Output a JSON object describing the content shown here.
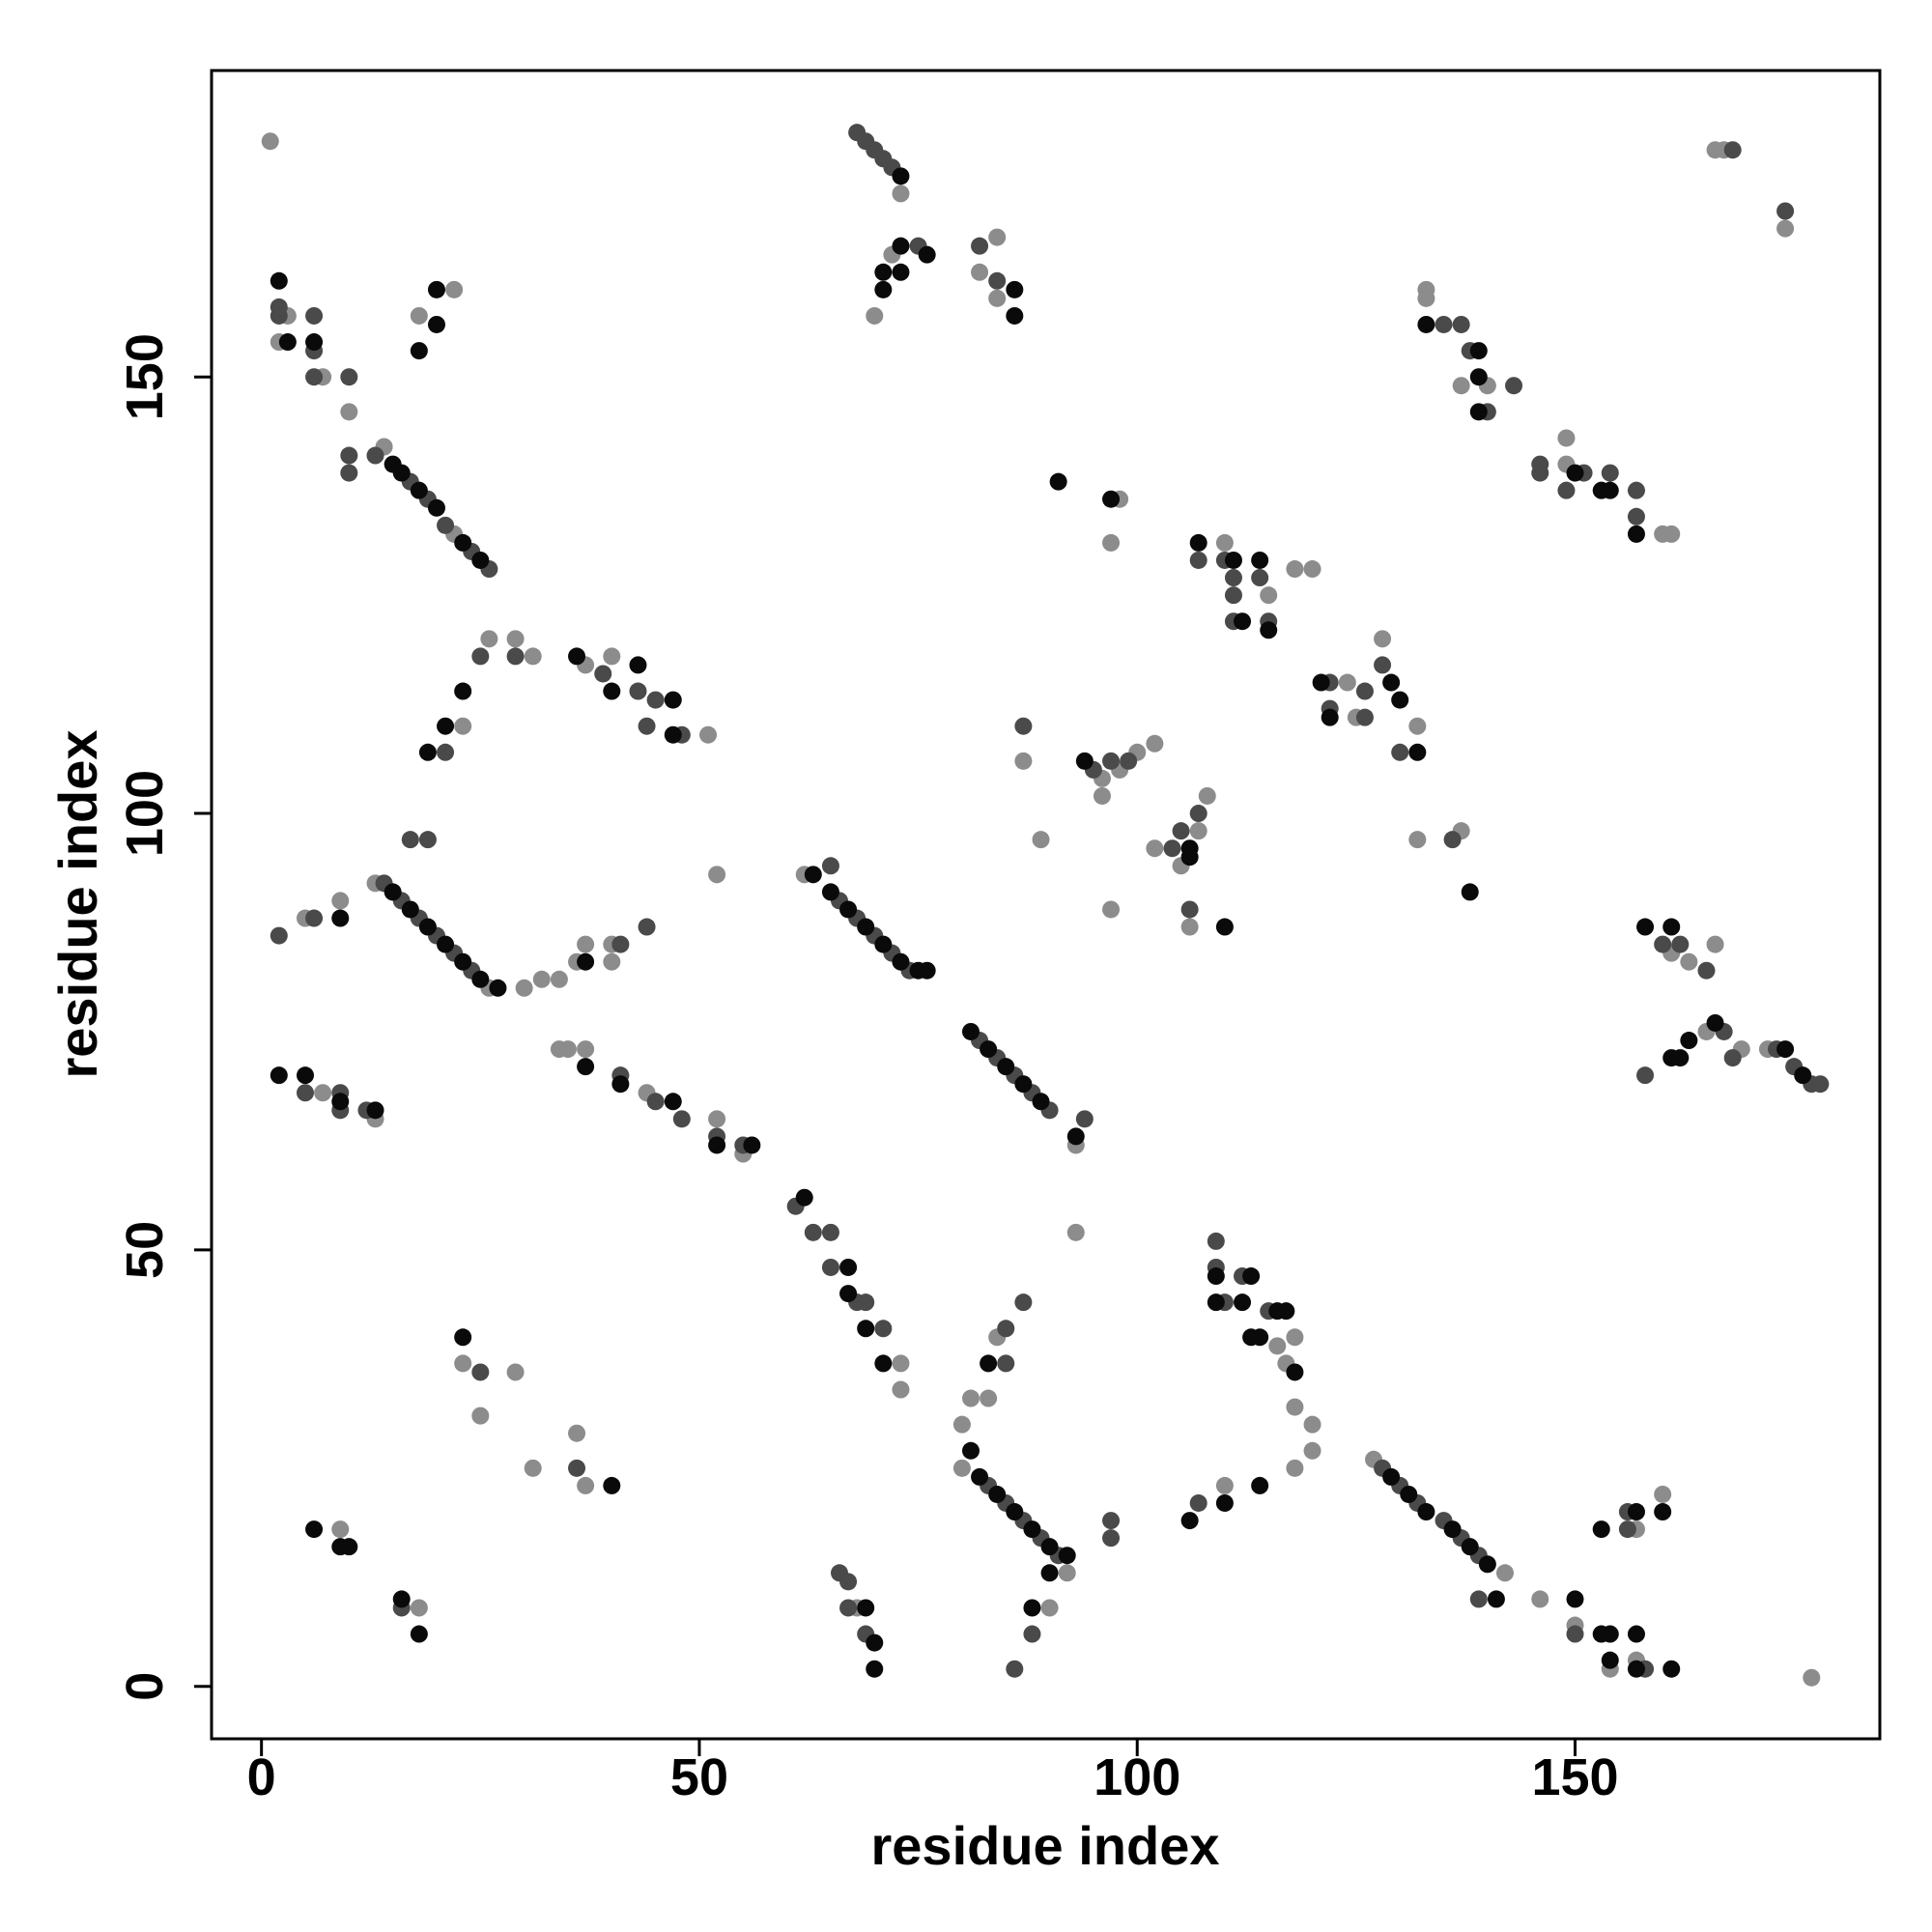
{
  "chart_data": {
    "type": "scatter",
    "x_label": "residue index",
    "y_label": "residue index",
    "xlim": [
      -5.7,
      184.8
    ],
    "ylim": [
      -6,
      185.1
    ],
    "xticks": [
      0,
      50,
      100,
      150
    ],
    "yticks": [
      0,
      50,
      100,
      150
    ],
    "series": [
      {
        "color": "#8c8c8c",
        "x": [
          1,
          3,
          2,
          7,
          10,
          18,
          22,
          14,
          22,
          23,
          26,
          29,
          31,
          37,
          40,
          51,
          13,
          26,
          5,
          9,
          30,
          32,
          34,
          36,
          37,
          40,
          40,
          52,
          34,
          35,
          37,
          44,
          52,
          55,
          7,
          13,
          62,
          93,
          93,
          73,
          73,
          23,
          25,
          29,
          31,
          36,
          37,
          9,
          18,
          68,
          80,
          92,
          80,
          81,
          83,
          84,
          90,
          73,
          72,
          70,
          84,
          82,
          84,
          98,
          97,
          110,
          115,
          118,
          120,
          96,
          96,
          98,
          100,
          102,
          87,
          89,
          97,
          102,
          105,
          106,
          107,
          108,
          124,
          125,
          128,
          132,
          132,
          137,
          133,
          133,
          137,
          140,
          149,
          149,
          160,
          161,
          166,
          167,
          174,
          161,
          163,
          166,
          165,
          169,
          172,
          110,
          116,
          117,
          118,
          118,
          118,
          120,
          120,
          127,
          142,
          146,
          150,
          154,
          157,
          157,
          160,
          177
        ],
        "y": [
          177,
          157,
          154,
          150,
          146,
          157,
          160,
          142,
          132,
          110,
          120,
          120,
          118,
          117,
          118,
          109,
          92,
          80,
          88,
          90,
          80,
          81,
          81,
          83,
          85,
          85,
          83,
          93,
          73,
          73,
          73,
          68,
          65,
          61,
          68,
          65,
          93,
          62,
          52,
          37,
          34,
          37,
          31,
          36,
          25,
          29,
          23,
          18,
          9,
          9,
          25,
          13,
          30,
          33,
          33,
          40,
          9,
          171,
          164,
          157,
          166,
          162,
          159,
          136,
          131,
          131,
          125,
          128,
          128,
          104,
          102,
          105,
          107,
          108,
          106,
          97,
          89,
          96,
          94,
          87,
          98,
          102,
          115,
          111,
          120,
          110,
          97,
          98,
          160,
          159,
          149,
          149,
          143,
          140,
          132,
          132,
          176,
          176,
          167,
          84,
          83,
          85,
          75,
          73,
          73,
          23,
          39,
          37,
          40,
          32,
          25,
          30,
          27,
          26,
          13,
          10,
          7,
          2,
          18,
          3,
          22,
          1
        ]
      },
      {
        "color": "#4a4a4a",
        "x": [
          2,
          2,
          6,
          6,
          6,
          10,
          10,
          10,
          13,
          17,
          19,
          21,
          24,
          26,
          21,
          25,
          29,
          39,
          43,
          44,
          45,
          48,
          14,
          16,
          18,
          20,
          22,
          24,
          2,
          6,
          17,
          19,
          41,
          44,
          41,
          45,
          48,
          52,
          55,
          5,
          9,
          9,
          12,
          65,
          66,
          68,
          70,
          72,
          74,
          82,
          84,
          86,
          88,
          90,
          94,
          61,
          63,
          65,
          65,
          68,
          69,
          71,
          25,
          36,
          16,
          66,
          67,
          67,
          69,
          83,
          85,
          87,
          89,
          91,
          85,
          85,
          87,
          86,
          88,
          68,
          69,
          70,
          71,
          72,
          75,
          82,
          84,
          107,
          110,
          111,
          111,
          111,
          114,
          115,
          95,
          97,
          99,
          104,
          105,
          106,
          107,
          87,
          122,
          122,
          126,
          126,
          128,
          130,
          136,
          135,
          137,
          138,
          140,
          143,
          146,
          146,
          149,
          151,
          154,
          157,
          157,
          168,
          174,
          160,
          162,
          165,
          158,
          167,
          168,
          173,
          175,
          177,
          178,
          107,
          109,
          109,
          110,
          112,
          115,
          97,
          97,
          128,
          130,
          132,
          135,
          137,
          139,
          139,
          150,
          156,
          156,
          158
        ],
        "y": [
          158,
          157,
          157,
          153,
          150,
          150,
          141,
          139,
          141,
          138,
          136,
          133,
          130,
          128,
          107,
          118,
          118,
          116,
          114,
          110,
          113,
          109,
          92,
          90,
          88,
          86,
          84,
          82,
          86,
          88,
          97,
          97,
          85,
          87,
          70,
          67,
          65,
          63,
          62,
          68,
          68,
          66,
          66,
          94,
          90,
          88,
          86,
          84,
          82,
          74,
          72,
          70,
          68,
          66,
          65,
          55,
          52,
          52,
          48,
          44,
          44,
          41,
          36,
          25,
          9,
          13,
          12,
          9,
          6,
          23,
          21,
          19,
          17,
          15,
          41,
          37,
          44,
          2,
          6,
          178,
          177,
          176,
          175,
          174,
          165,
          165,
          161,
          129,
          129,
          127,
          125,
          122,
          127,
          122,
          105,
          106,
          106,
          96,
          98,
          89,
          100,
          110,
          115,
          112,
          114,
          111,
          117,
          107,
          97,
          156,
          156,
          153,
          146,
          149,
          140,
          139,
          137,
          139,
          139,
          137,
          134,
          176,
          169,
          85,
          85,
          82,
          70,
          75,
          72,
          73,
          71,
          69,
          69,
          21,
          51,
          48,
          44,
          47,
          43,
          19,
          17,
          25,
          23,
          21,
          19,
          17,
          15,
          10,
          6,
          20,
          18,
          2
        ]
      },
      {
        "color": "#0a0a0a",
        "x": [
          2,
          3,
          6,
          18,
          20,
          20,
          15,
          16,
          18,
          20,
          23,
          25,
          19,
          21,
          23,
          36,
          40,
          43,
          47,
          47,
          15,
          17,
          19,
          21,
          23,
          25,
          27,
          9,
          37,
          37,
          41,
          47,
          52,
          56,
          2,
          5,
          9,
          13,
          63,
          65,
          67,
          69,
          71,
          73,
          75,
          76,
          81,
          83,
          85,
          87,
          89,
          93,
          62,
          67,
          67,
          69,
          71,
          23,
          40,
          6,
          9,
          10,
          16,
          18,
          69,
          70,
          70,
          82,
          84,
          86,
          88,
          90,
          92,
          90,
          81,
          83,
          88,
          73,
          71,
          71,
          73,
          73,
          76,
          86,
          86,
          91,
          97,
          107,
          111,
          112,
          114,
          115,
          94,
          106,
          106,
          110,
          121,
          122,
          129,
          130,
          132,
          138,
          133,
          139,
          139,
          139,
          150,
          153,
          154,
          157,
          158,
          161,
          161,
          162,
          163,
          166,
          174,
          176,
          106,
          110,
          109,
          109,
          112,
          113,
          113,
          114,
          116,
          117,
          118,
          114,
          129,
          131,
          133,
          136,
          138,
          140,
          141,
          150,
          153,
          153,
          154,
          154,
          157,
          157,
          157,
          160,
          161
        ],
        "y": [
          161,
          154,
          154,
          153,
          160,
          156,
          140,
          139,
          137,
          135,
          131,
          129,
          107,
          110,
          114,
          118,
          114,
          117,
          113,
          109,
          91,
          89,
          87,
          85,
          83,
          81,
          80,
          88,
          83,
          71,
          69,
          67,
          62,
          62,
          70,
          70,
          67,
          66,
          93,
          91,
          89,
          87,
          85,
          83,
          82,
          82,
          75,
          73,
          71,
          69,
          67,
          63,
          56,
          48,
          45,
          41,
          37,
          40,
          23,
          18,
          16,
          16,
          10,
          6,
          9,
          5,
          2,
          24,
          22,
          20,
          18,
          16,
          15,
          13,
          27,
          37,
          9,
          173,
          162,
          160,
          165,
          162,
          164,
          160,
          157,
          138,
          136,
          131,
          129,
          122,
          129,
          121,
          106,
          96,
          95,
          87,
          115,
          111,
          115,
          113,
          107,
          91,
          156,
          153,
          150,
          146,
          139,
          137,
          137,
          132,
          87,
          87,
          72,
          72,
          74,
          76,
          73,
          70,
          19,
          21,
          47,
          44,
          44,
          47,
          40,
          40,
          43,
          43,
          36,
          23,
          24,
          22,
          20,
          18,
          16,
          14,
          10,
          10,
          18,
          6,
          6,
          3,
          20,
          6,
          2,
          20,
          2
        ]
      }
    ]
  }
}
